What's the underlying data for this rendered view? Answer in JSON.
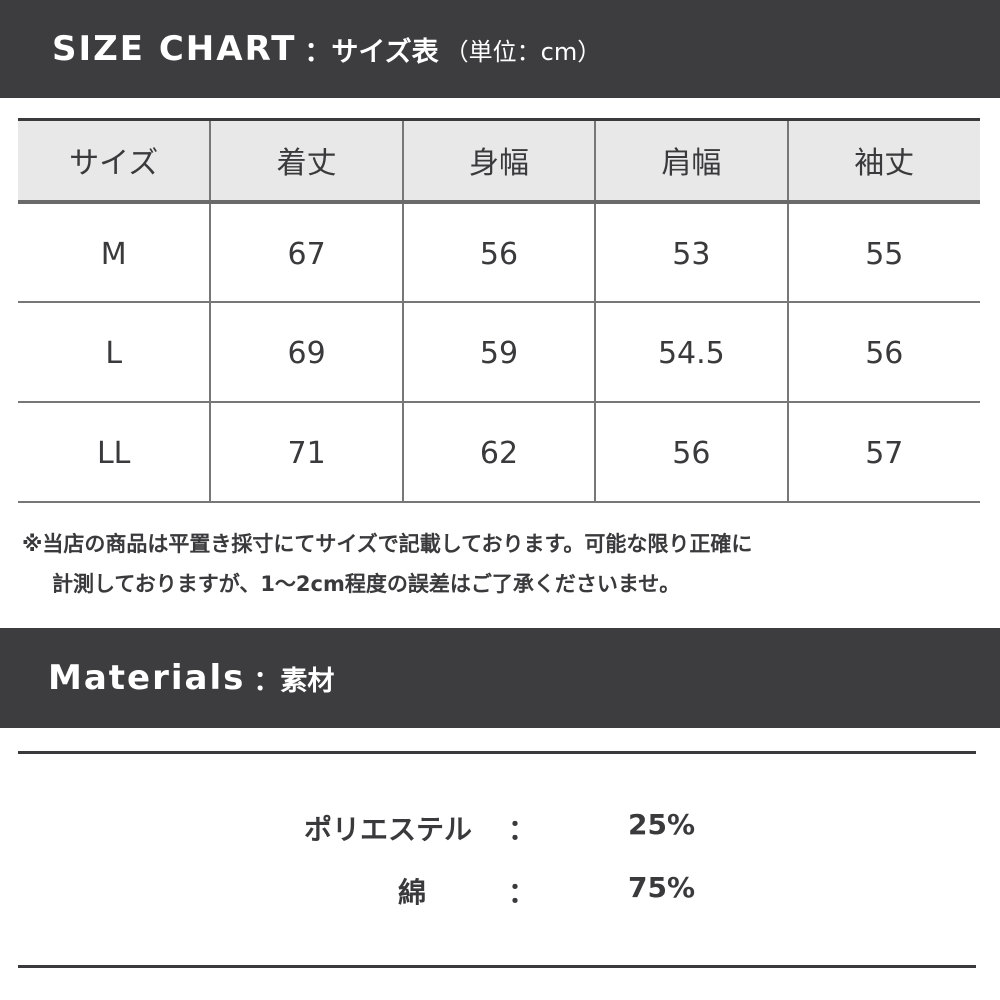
{
  "size_chart": {
    "title_en": "SIZE CHART",
    "title_jp": "：サイズ表",
    "unit": "（単位：cm）",
    "headers": [
      "サイズ",
      "着丈",
      "身幅",
      "肩幅",
      "袖丈"
    ],
    "rows": [
      [
        "M",
        "67",
        "56",
        "53",
        "55"
      ],
      [
        "L",
        "69",
        "59",
        "54.5",
        "56"
      ],
      [
        "LL",
        "71",
        "62",
        "56",
        "57"
      ]
    ]
  },
  "note": {
    "line1": "※当店の商品は平置き採寸にてサイズで記載しております。可能な限り正確に",
    "line2": "計測しておりますが、1〜2cm程度の誤差はご了承くださいませ。"
  },
  "materials": {
    "title_en": "Materials",
    "title_jp": "：素材",
    "items": [
      {
        "name": "ポリエステル",
        "sep": "：",
        "pct": "25%"
      },
      {
        "name": "綿",
        "sep": "：",
        "pct": "75%"
      }
    ]
  },
  "colors": {
    "band": "#3d3d3f",
    "header_bg": "#e8e8e8"
  }
}
